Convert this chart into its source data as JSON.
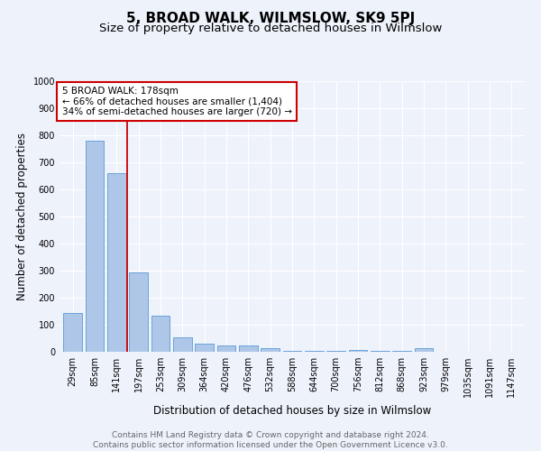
{
  "title": "5, BROAD WALK, WILMSLOW, SK9 5PJ",
  "subtitle": "Size of property relative to detached houses in Wilmslow",
  "xlabel": "Distribution of detached houses by size in Wilmslow",
  "ylabel": "Number of detached properties",
  "categories": [
    "29sqm",
    "85sqm",
    "141sqm",
    "197sqm",
    "253sqm",
    "309sqm",
    "364sqm",
    "420sqm",
    "476sqm",
    "532sqm",
    "588sqm",
    "644sqm",
    "700sqm",
    "756sqm",
    "812sqm",
    "868sqm",
    "923sqm",
    "979sqm",
    "1035sqm",
    "1091sqm",
    "1147sqm"
  ],
  "values": [
    143,
    780,
    660,
    293,
    135,
    54,
    30,
    22,
    22,
    15,
    5,
    5,
    5,
    8,
    5,
    5,
    13,
    0,
    0,
    0,
    0
  ],
  "bar_color": "#aec6e8",
  "bar_edge_color": "#5b9bd5",
  "property_line_x": 2.5,
  "annotation_text_line1": "5 BROAD WALK: 178sqm",
  "annotation_text_line2": "← 66% of detached houses are smaller (1,404)",
  "annotation_text_line3": "34% of semi-detached houses are larger (720) →",
  "annotation_box_color": "#ffffff",
  "annotation_border_color": "#cc0000",
  "vline_color": "#cc0000",
  "ylim": [
    0,
    1000
  ],
  "yticks": [
    0,
    100,
    200,
    300,
    400,
    500,
    600,
    700,
    800,
    900,
    1000
  ],
  "background_color": "#eef2fb",
  "footer_line1": "Contains HM Land Registry data © Crown copyright and database right 2024.",
  "footer_line2": "Contains public sector information licensed under the Open Government Licence v3.0.",
  "title_fontsize": 11,
  "subtitle_fontsize": 9.5,
  "tick_fontsize": 7,
  "ylabel_fontsize": 8.5,
  "xlabel_fontsize": 8.5,
  "ann_fontsize": 7.5,
  "footer_fontsize": 6.5
}
